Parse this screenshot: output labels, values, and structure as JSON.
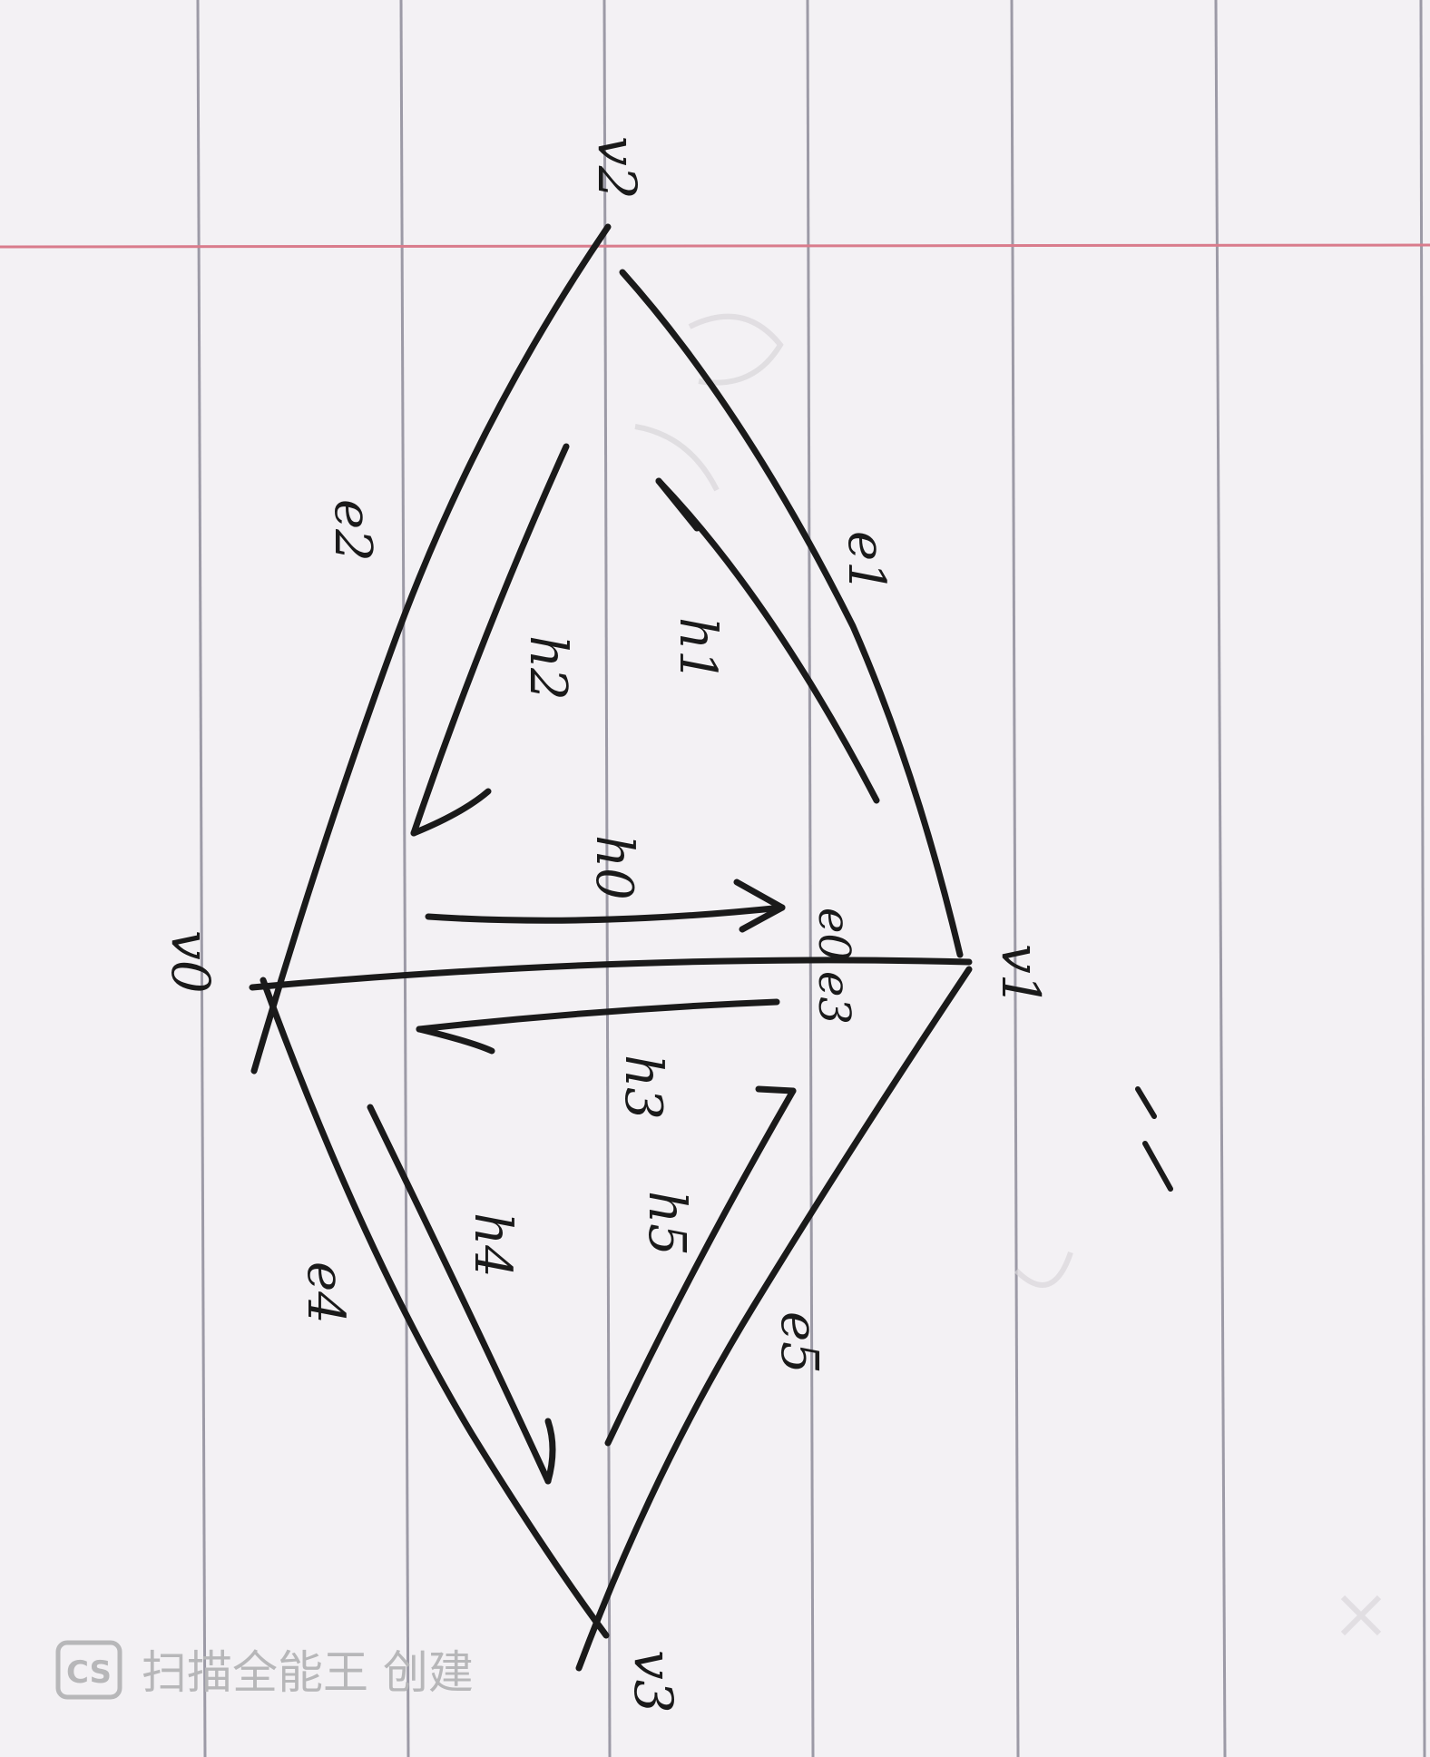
{
  "diagram": {
    "vertices": [
      {
        "id": "v0",
        "label": "v0"
      },
      {
        "id": "v1",
        "label": "v1"
      },
      {
        "id": "v2",
        "label": "v2"
      },
      {
        "id": "v3",
        "label": "v3"
      }
    ],
    "edges": [
      {
        "id": "e0",
        "label": "e0",
        "from": "v0",
        "to": "v1"
      },
      {
        "id": "e1",
        "label": "e1",
        "from": "v2",
        "to": "v1"
      },
      {
        "id": "e2",
        "label": "e2",
        "from": "v2",
        "to": "v0"
      },
      {
        "id": "e3",
        "label": "e3",
        "from": "v1",
        "to": "v0"
      },
      {
        "id": "e4",
        "label": "e4",
        "from": "v0",
        "to": "v3"
      },
      {
        "id": "e5",
        "label": "e5",
        "from": "v3",
        "to": "v1"
      }
    ],
    "halfedges": [
      {
        "id": "h0",
        "label": "h0"
      },
      {
        "id": "h1",
        "label": "h1"
      },
      {
        "id": "h2",
        "label": "h2"
      },
      {
        "id": "h3",
        "label": "h3"
      },
      {
        "id": "h4",
        "label": "h4"
      },
      {
        "id": "h5",
        "label": "h5"
      }
    ]
  },
  "watermark": {
    "logo": "CS",
    "text": "扫描全能王 创建"
  },
  "colors": {
    "paper": "#f3f1f4",
    "rule_lines": "#9c9aa6",
    "margin_line": "#d97c8c",
    "ink": "#1a1a1a",
    "watermark": "#b7b7b9"
  }
}
